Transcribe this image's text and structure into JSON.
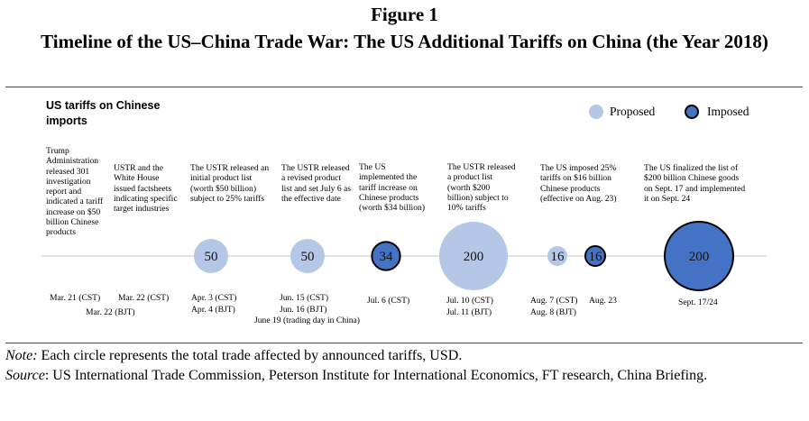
{
  "figure_label": "Figure 1",
  "title": "Timeline of the US–China Trade War: The US Additional Tariffs on China (the Year 2018)",
  "chart_data": {
    "type": "bubble-timeline",
    "panel_title": "US tariffs on Chinese imports",
    "legend": [
      {
        "label": "Proposed",
        "color": "#b4c7e7"
      },
      {
        "label": "Imposed",
        "color": "#4472c4"
      }
    ],
    "events": [
      {
        "description": "Trump Administration released 301 investigation report and indicated a tariff increase on $50 billion Chinese products",
        "dates": [
          "Mar. 21 (CST)"
        ]
      },
      {
        "description": "USTR and the White House issued factsheets indicating specific target industries",
        "dates": [
          "Mar. 22 (CST)",
          "Mar. 22 (BJT)"
        ]
      },
      {
        "description": "The USTR released an initial product list (worth $50 billion) subject to 25% tariffs",
        "dates": [
          "Apr. 3 (CST)",
          "Apr. 4 (BJT)"
        ]
      },
      {
        "description": "The USTR released a revised product list and set July 6 as the effective date",
        "dates": [
          "Jun. 15 (CST)",
          "Jun. 16 (BJT)",
          "June 19 (trading day in China)"
        ]
      },
      {
        "description": "The US implemented the tariff increase on Chinese products (worth $34 billion)",
        "dates": [
          "Jul. 6 (CST)"
        ]
      },
      {
        "description": "The USTR released a product list (worth $200 billion) subject to 10% tariffs",
        "dates": [
          "Jul. 10 (CST)",
          "Jul. 11 (BJT)"
        ]
      },
      {
        "description": "The US imposed 25% tariffs on $16 billion Chinese products (effective on Aug. 23)",
        "dates": [
          "Aug. 7 (CST)",
          "Aug. 8 (BJT)",
          "Aug. 23"
        ]
      },
      {
        "description": "The US finalized the list of $200 billion Chinese goods on Sept. 17 and implemented it on Sept. 24",
        "dates": [
          "Sept. 17/24"
        ]
      }
    ],
    "bubbles": [
      {
        "value": 50,
        "label": "50",
        "status": "Proposed"
      },
      {
        "value": 50,
        "label": "50",
        "status": "Proposed"
      },
      {
        "value": 34,
        "label": "34",
        "status": "Imposed"
      },
      {
        "value": 200,
        "label": "200",
        "status": "Proposed"
      },
      {
        "value": 16,
        "label": "16",
        "status": "Proposed"
      },
      {
        "value": 16,
        "label": "16",
        "status": "Imposed"
      },
      {
        "value": 200,
        "label": "200",
        "status": "Imposed"
      }
    ],
    "value_unit": "USD billion"
  },
  "note": {
    "label": "Note:",
    "text": "Each circle represents the total trade affected by announced tariffs, USD."
  },
  "source": {
    "label": "Source",
    "text": ": US International Trade Commission, Peterson Institute for International Economics, FT research, China Briefing."
  }
}
